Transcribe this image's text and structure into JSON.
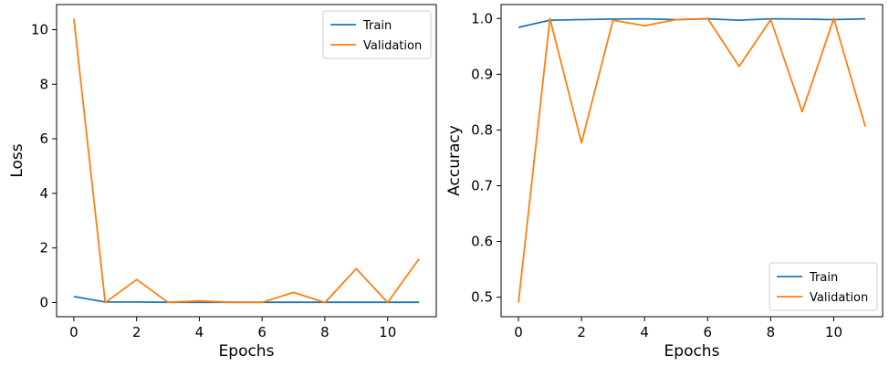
{
  "chart_data": [
    {
      "type": "line",
      "xlabel": "Epochs",
      "ylabel": "Loss",
      "xlim": [
        -0.55,
        11.55
      ],
      "ylim": [
        -0.52,
        10.92
      ],
      "xticks": [
        0,
        2,
        4,
        6,
        8,
        10
      ],
      "yticks": [
        0,
        2,
        4,
        6,
        8,
        10
      ],
      "legend_position": "upper-right",
      "series": [
        {
          "name": "Train",
          "color": "#1f77b4",
          "x": [
            0,
            1,
            2,
            3,
            4,
            5,
            6,
            7,
            8,
            9,
            10,
            11
          ],
          "values": [
            0.22,
            0.02,
            0.02,
            0.01,
            0.01,
            0.01,
            0.01,
            0.01,
            0.01,
            0.01,
            0.01,
            0.01
          ]
        },
        {
          "name": "Validation",
          "color": "#ff7f0e",
          "x": [
            0,
            1,
            2,
            3,
            4,
            5,
            6,
            7,
            8,
            9,
            10,
            11
          ],
          "values": [
            10.4,
            0.0,
            0.84,
            0.01,
            0.06,
            0.01,
            0.01,
            0.37,
            0.0,
            1.24,
            0.0,
            1.6
          ]
        }
      ]
    },
    {
      "type": "line",
      "xlabel": "Epochs",
      "ylabel": "Accuracy",
      "xlim": [
        -0.55,
        11.55
      ],
      "ylim": [
        0.465,
        1.025
      ],
      "xticks": [
        0,
        2,
        4,
        6,
        8,
        10
      ],
      "yticks": [
        0.5,
        0.6,
        0.7,
        0.8,
        0.9,
        1.0
      ],
      "legend_position": "lower-right",
      "series": [
        {
          "name": "Train",
          "color": "#1f77b4",
          "x": [
            0,
            1,
            2,
            3,
            4,
            5,
            6,
            7,
            8,
            9,
            10,
            11
          ],
          "values": [
            0.984,
            0.997,
            0.998,
            0.999,
            0.9995,
            0.998,
            0.9995,
            0.997,
            0.9995,
            0.999,
            0.998,
            0.9995
          ]
        },
        {
          "name": "Validation",
          "color": "#ff7f0e",
          "x": [
            0,
            1,
            2,
            3,
            4,
            5,
            6,
            7,
            8,
            9,
            10,
            11
          ],
          "values": [
            0.49,
            1.0,
            0.777,
            0.997,
            0.987,
            0.998,
            1.0,
            0.914,
            0.998,
            0.833,
            1.0,
            0.806
          ]
        }
      ]
    }
  ]
}
